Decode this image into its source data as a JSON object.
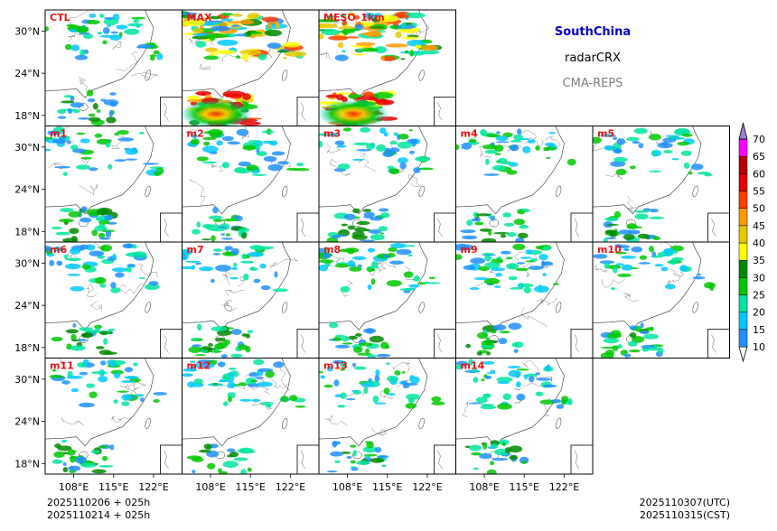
{
  "chart_data": {
    "type": "heatmap",
    "region": "SouthChina",
    "variable": "radarCRX",
    "system": "CMA-REPS",
    "panels": [
      "CTL",
      "MAX",
      "MESO_1km",
      "m1",
      "m2",
      "m3",
      "m4",
      "m5",
      "m6",
      "m7",
      "m8",
      "m9",
      "m10",
      "m11",
      "m12",
      "m13",
      "m14"
    ],
    "lat_ticks": [
      "30°N",
      "24°N",
      "18°N"
    ],
    "lon_ticks": [
      "108°E",
      "115°E",
      "122°E"
    ],
    "lat_range": [
      16.5,
      33.0
    ],
    "lon_range": [
      103.0,
      127.0
    ],
    "colorbar": {
      "levels": [
        10,
        15,
        20,
        25,
        30,
        35,
        40,
        45,
        50,
        55,
        60,
        65,
        70
      ],
      "colors": [
        "#1e90ff",
        "#00c8ff",
        "#00e5a0",
        "#00c800",
        "#008a00",
        "#ffff00",
        "#e6c800",
        "#ff9900",
        "#ff3c00",
        "#e60000",
        "#b40000",
        "#ff00ff",
        "#9900cc",
        "#9a7fd4"
      ]
    },
    "init_utc": "2025110206  +  025h",
    "init_cst": "2025110214  +  025h",
    "valid_utc": "2025110307(UTC)",
    "valid_cst": "2025110315(CST)"
  },
  "colors": {
    "region": "#0000cc",
    "variable": "#000000",
    "system": "#808080",
    "panel_title": "#ee1111"
  }
}
